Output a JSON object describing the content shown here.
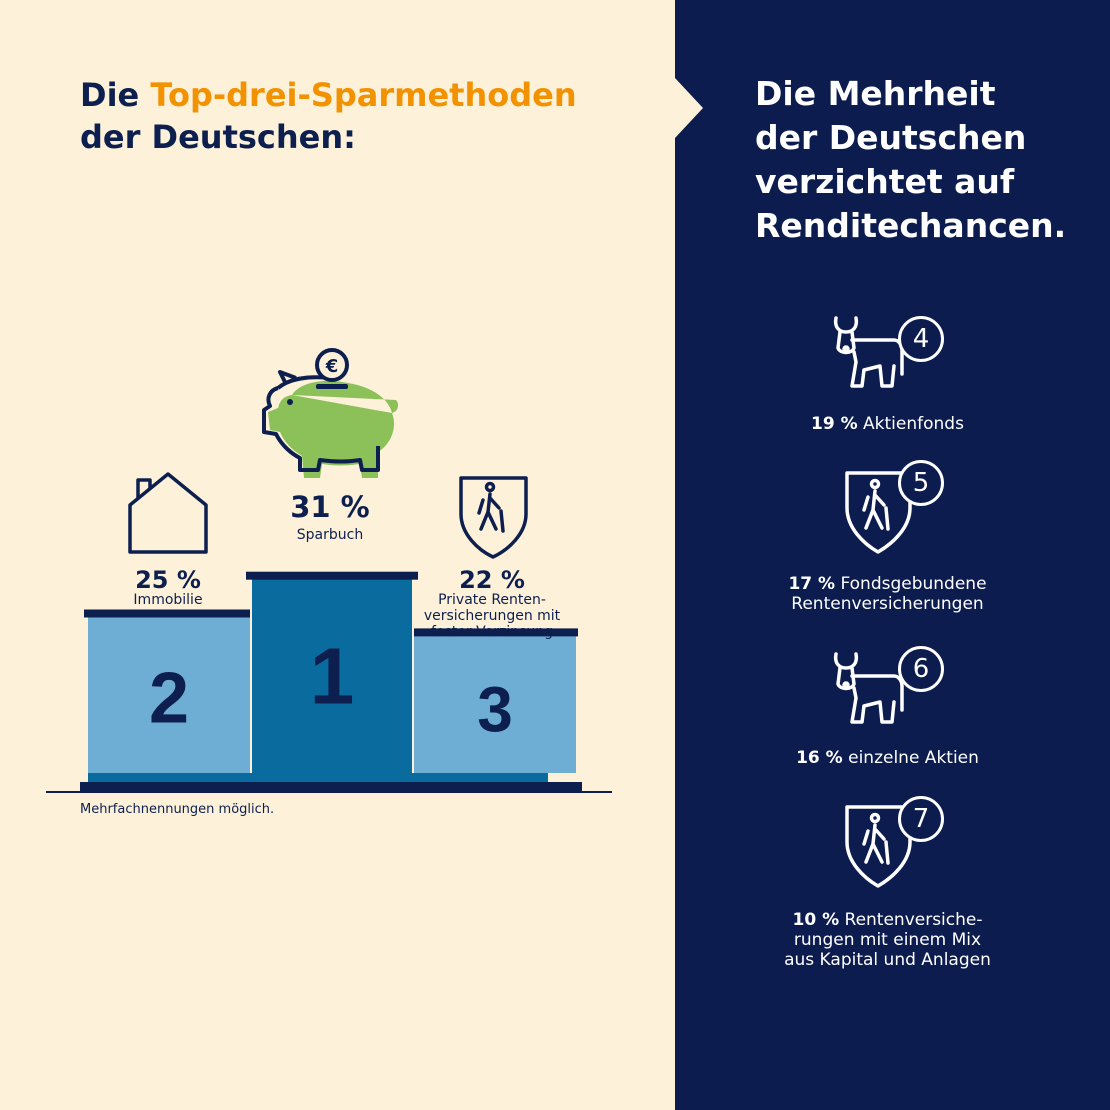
{
  "left_title": {
    "line1_pre": "Die ",
    "line1_highlight": "Top-drei-Sparmethoden",
    "line2": "der Deutschen:"
  },
  "right_title": {
    "lines": [
      "Die Mehrheit",
      "der Deutschen",
      "verzichtet auf",
      "Renditechancen."
    ]
  },
  "footnote": "Mehrfachnennungen möglich.",
  "colors": {
    "left_bg": "#fdf2d9",
    "right_bg": "#0c1c4e",
    "navy": "#0d1f4f",
    "orange": "#f39200",
    "green": "#8cc15a",
    "podium_mid": "#0a6b9e",
    "podium_side": "#6eaed4"
  },
  "chart_data": {
    "type": "bar",
    "categories": [
      "Sparbuch",
      "Immobilie",
      "Private Renten-versicherungen mit fester Verzinsung"
    ],
    "values": [
      31,
      25,
      22
    ],
    "ranks": [
      "1",
      "2",
      "3"
    ],
    "value_labels": [
      "31 %",
      "25 %",
      "22 %"
    ],
    "label_lines": [
      [
        "Sparbuch"
      ],
      [
        "Immobilie"
      ],
      [
        "Private Renten-",
        "versicherungen mit",
        "fester Verzinsung"
      ]
    ],
    "icons": [
      "piggy-bank-icon",
      "house-icon",
      "shield-walker-icon"
    ],
    "unit": "%"
  },
  "right_items": [
    {
      "rank": "4",
      "percent": "19 %",
      "label_lines": [
        "Aktienfonds"
      ],
      "icon": "bull-icon"
    },
    {
      "rank": "5",
      "percent": "17 %",
      "label_lines": [
        "Fondsgebundene",
        "Rentenversicherungen"
      ],
      "icon": "shield-walker-icon"
    },
    {
      "rank": "6",
      "percent": "16 %",
      "label_lines": [
        "einzelne Aktien"
      ],
      "icon": "bull-icon"
    },
    {
      "rank": "7",
      "percent": "10 %",
      "label_lines": [
        "Rentenversiche-",
        "rungen mit einem Mix",
        "aus Kapital und Anlagen"
      ],
      "icon": "shield-walker-icon"
    }
  ]
}
